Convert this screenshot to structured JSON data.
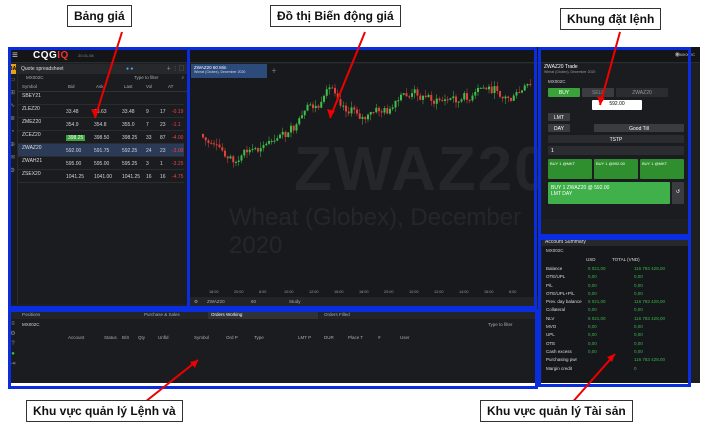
{
  "annotations": {
    "price_board": "Bảng giá",
    "chart": "Đồ thị Biến động giá",
    "order_frame": "Khung đặt lệnh",
    "order_mgmt": "Khu vực quản lý Lệnh và",
    "asset_mgmt": "Khu vực quản lý Tài sản"
  },
  "topbar": {
    "logo_a": "CQG",
    "logo_b": "IQ",
    "version": "20.01.08"
  },
  "quote": {
    "title": "Quote spreadsheet",
    "ba": "BA",
    "account": "MX002C",
    "filter": "Type to filter",
    "columns": [
      "Symbol",
      "Bid",
      "Ask",
      "Last",
      "Vol",
      "AT"
    ],
    "rows": [
      {
        "sym": "SBEY21",
        "sub": "",
        "bid": "",
        "ask": "",
        "last": "",
        "v1": "",
        "v2": "",
        "chg": ""
      },
      {
        "sym": "ZLEZ20",
        "sub": "",
        "bid": "33.48",
        "ask": "33.63",
        "last": "33.48",
        "v1": "9",
        "v2": "17",
        "chg": "-0.19"
      },
      {
        "sym": "ZMEZ20",
        "sub": "",
        "bid": "354.9",
        "ask": "354.8",
        "last": "355.0",
        "v1": "7",
        "v2": "23",
        "chg": "-1.1"
      },
      {
        "sym": "ZCEZ20",
        "sub": "",
        "bid": "398.25",
        "ask": "398.50",
        "last": "398.25",
        "v1": "33",
        "v2": "87",
        "chg": "-4.00"
      },
      {
        "sym": "ZWAZ20",
        "sub": "",
        "bid": "592.00",
        "ask": "591.75",
        "last": "592.25",
        "v1": "24",
        "v2": "23",
        "chg": "-3.00"
      },
      {
        "sym": "ZWAH21",
        "sub": "",
        "bid": "595.00",
        "ask": "595.00",
        "last": "595.25",
        "v1": "3",
        "v2": "1",
        "chg": "-3.25"
      },
      {
        "sym": "ZSEX20",
        "sub": "",
        "bid": "1041.25",
        "ask": "1041.00",
        "last": "1041.25",
        "v1": "16",
        "v2": "16",
        "chg": "-4.75"
      }
    ]
  },
  "chart": {
    "tab": "ZWAZ20 60 Min",
    "tab_sub": "Wheat (Globex), December 2020",
    "watermark": "ZWAZ20",
    "watermark2": "Wheat (Globex), December 2020",
    "symbol_field": "ZWAZ20",
    "interval": "60",
    "study": "Study",
    "time_ticks": [
      "18:00",
      "20:00",
      "8:00",
      "10:00",
      "12:00",
      "16:00",
      "18:00",
      "20:00",
      "10:00",
      "12:00",
      "14:00",
      "16:00",
      "8:00"
    ]
  },
  "trade": {
    "title": "ZWAZ20 Trade",
    "sub": "Wheat (Globex), December 2020",
    "account": "MX002C",
    "buy": "BUY",
    "sell": "SELL",
    "symbol": "ZWAZ20",
    "price": "592.00",
    "price_sub": "LMT",
    "order_type": "LMT",
    "duration": "DAY",
    "gtd": "Good Till",
    "qty": "1",
    "tstp": "TSTP",
    "buy_btns": [
      "BUY 1 @MKT",
      "BUY 1 @592.00",
      "BUY 1 @MKT"
    ],
    "main_buy": "BUY 1 ZWAZ20 @ 592.00",
    "main_buy_sub": "LMT DAY"
  },
  "account": {
    "title": "Account Summary",
    "account": "MX002C",
    "col_usd": "USD",
    "col_total": "TOTAL (VND)",
    "rows": [
      {
        "k": "Balance",
        "usd": "5 021,00",
        "vnd": "116 783 428,00"
      },
      {
        "k": "OTE/UPL",
        "usd": "0,00",
        "vnd": "0,00"
      },
      {
        "k": "P/L",
        "usd": "0,00",
        "vnd": "0,00"
      },
      {
        "k": "OTE/UPL+P/L",
        "usd": "0,00",
        "vnd": "0,00"
      },
      {
        "k": "Prev. day balance",
        "usd": "5 021,00",
        "vnd": "116 783 428,00"
      },
      {
        "k": "Collateral",
        "usd": "0,00",
        "vnd": "0,00"
      },
      {
        "k": "NLV",
        "usd": "5 021,00",
        "vnd": "116 783 428,00"
      },
      {
        "k": "MVO",
        "usd": "0,00",
        "vnd": "0,00"
      },
      {
        "k": "UPL",
        "usd": "0,00",
        "vnd": "0,00"
      },
      {
        "k": "OTE",
        "usd": "0,00",
        "vnd": "0,00"
      },
      {
        "k": "Cash excess",
        "usd": "0,00",
        "vnd": "0,00"
      },
      {
        "k": "Purchasing pwr",
        "usd": "",
        "vnd": "116 783 428,00"
      },
      {
        "k": "Margin credit",
        "usd": "",
        "vnd": "0"
      }
    ]
  },
  "orders": {
    "tabs": [
      "Positions",
      "Purchase & Sales",
      "Orders Working",
      "Orders Filled"
    ],
    "account": "MX002C",
    "filter": "Type to filter",
    "columns": [
      "Account",
      "Status",
      "B/S",
      "Qty",
      "Unfld",
      "Symbol",
      "Ord P",
      "Type",
      "LMT P",
      "DUR",
      "Place T",
      "#",
      "User"
    ]
  }
}
